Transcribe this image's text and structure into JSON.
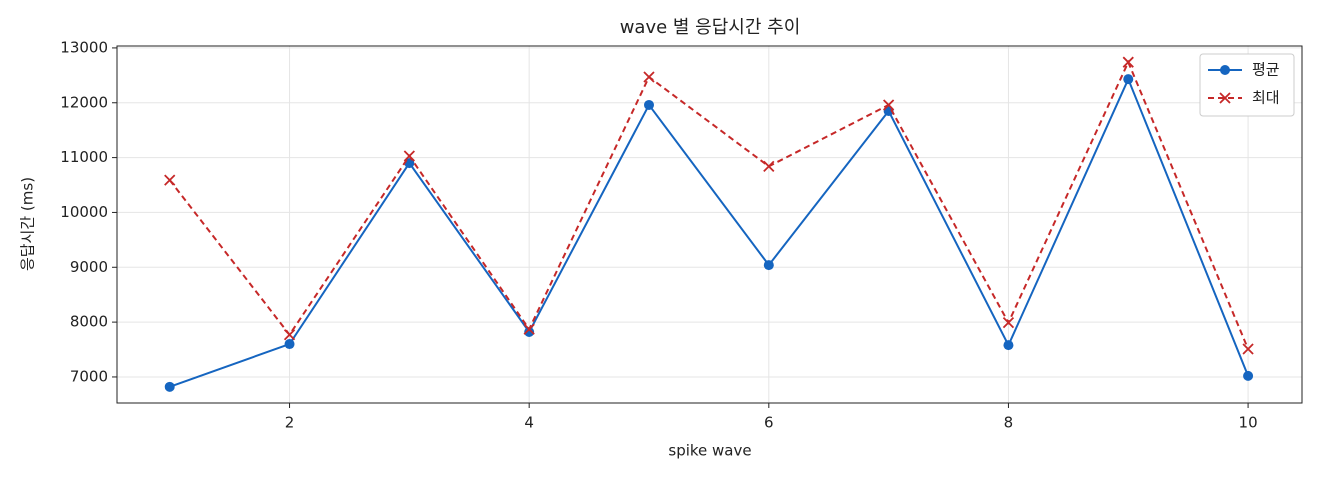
{
  "chart_data": {
    "type": "line",
    "title": "wave 별 응답시간 추이",
    "x_label": "spike wave",
    "y_label": "응답시간 (ms)",
    "x": [
      1,
      2,
      3,
      4,
      5,
      6,
      7,
      8,
      9,
      10
    ],
    "series": [
      {
        "name": "평균",
        "color": "#1565c0",
        "marker": "circle",
        "dash": "solid",
        "values": [
          6820,
          7600,
          10900,
          7820,
          11960,
          9040,
          11850,
          7580,
          12430,
          7020
        ]
      },
      {
        "name": "최대",
        "color": "#c62828",
        "marker": "x",
        "dash": "dashed",
        "values": [
          10590,
          7770,
          11030,
          7870,
          12470,
          10840,
          11960,
          7990,
          12740,
          7510
        ]
      }
    ],
    "xlim": [
      0.56,
      10.45
    ],
    "xticks": [
      2,
      4,
      6,
      8,
      10
    ],
    "ylim": [
      6525,
      13035
    ],
    "yticks": [
      7000,
      8000,
      9000,
      10000,
      11000,
      12000,
      13000
    ],
    "grid": true,
    "legend": "upper right"
  }
}
